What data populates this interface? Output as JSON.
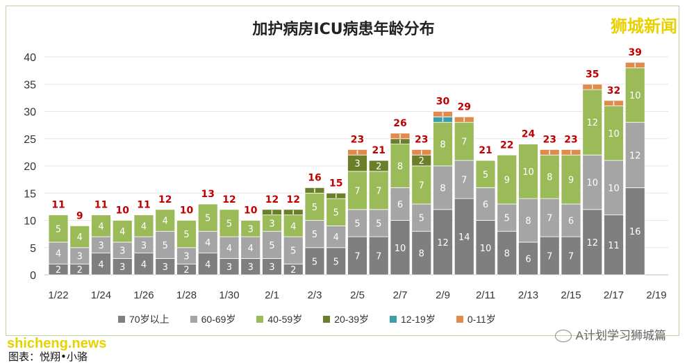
{
  "chart_data": {
    "type": "bar",
    "stacked": true,
    "title": "加护病房ICU病患年龄分布",
    "categories": [
      "1/22",
      "1/23",
      "1/24",
      "1/25",
      "1/26",
      "1/27",
      "1/28",
      "1/29",
      "1/30",
      "1/31",
      "2/1",
      "2/2",
      "2/3",
      "2/4",
      "2/5",
      "2/6",
      "2/7",
      "2/8",
      "2/9",
      "2/10",
      "2/11",
      "2/12",
      "2/13",
      "2/14",
      "2/15",
      "2/16",
      "2/17",
      "2/18"
    ],
    "x_tick_labels": [
      "1/22",
      "1/24",
      "1/26",
      "1/28",
      "1/30",
      "2/1",
      "2/3",
      "2/5",
      "2/7",
      "2/9",
      "2/11",
      "2/13",
      "2/15",
      "2/17",
      "2/19"
    ],
    "y_ticks": [
      "0",
      "5",
      "10",
      "15",
      "20",
      "25",
      "30",
      "35",
      "40"
    ],
    "ylim": [
      0,
      40
    ],
    "grid": true,
    "legend_position": "bottom",
    "series": [
      {
        "name": "70岁以上",
        "color": "#7f7f7f",
        "values": [
          2,
          2,
          4,
          3,
          4,
          3,
          2,
          4,
          3,
          3,
          3,
          2,
          5,
          5,
          7,
          7,
          10,
          8,
          12,
          14,
          10,
          8,
          6,
          7,
          7,
          12,
          11,
          16
        ]
      },
      {
        "name": "60-69岁",
        "color": "#a5a5a5",
        "values": [
          4,
          3,
          3,
          3,
          3,
          5,
          3,
          4,
          4,
          4,
          5,
          5,
          5,
          4,
          5,
          5,
          6,
          5,
          8,
          7,
          6,
          5,
          8,
          7,
          6,
          10,
          10,
          12
        ]
      },
      {
        "name": "40-59岁",
        "color": "#9bbb59",
        "values": [
          5,
          4,
          4,
          4,
          4,
          4,
          5,
          5,
          5,
          3,
          3,
          4,
          5,
          5,
          7,
          7,
          8,
          7,
          8,
          7,
          5,
          9,
          10,
          8,
          9,
          12,
          10,
          10
        ]
      },
      {
        "name": "20-39岁",
        "color": "#6b7f2a",
        "values": [
          0,
          0,
          0,
          0,
          0,
          0,
          0,
          0,
          0,
          0,
          1,
          1,
          1,
          1,
          3,
          2,
          1,
          2,
          0,
          0,
          0,
          0,
          0,
          0,
          0,
          0,
          0,
          0
        ]
      },
      {
        "name": "12-19岁",
        "color": "#3d9ea8",
        "values": [
          0,
          0,
          0,
          0,
          0,
          0,
          0,
          0,
          0,
          0,
          0,
          0,
          0,
          0,
          0,
          0,
          0,
          0,
          1,
          0,
          0,
          0,
          0,
          0,
          0,
          0,
          0,
          0
        ]
      },
      {
        "name": "0-11岁",
        "color": "#e08a4c",
        "values": [
          0,
          0,
          0,
          0,
          0,
          0,
          0,
          0,
          0,
          0,
          0,
          0,
          0,
          0,
          1,
          0,
          1,
          1,
          1,
          1,
          0,
          0,
          0,
          1,
          1,
          1,
          1,
          1
        ]
      }
    ],
    "totals": [
      11,
      9,
      11,
      10,
      11,
      12,
      10,
      13,
      12,
      10,
      12,
      12,
      16,
      15,
      23,
      21,
      26,
      23,
      30,
      29,
      21,
      22,
      24,
      23,
      23,
      35,
      32,
      39
    ]
  },
  "watermark": "狮城新闻",
  "site": "shicheng.news",
  "credit": "图表：悦翔•小骆",
  "wechat_account": "A计划学习狮城篇"
}
